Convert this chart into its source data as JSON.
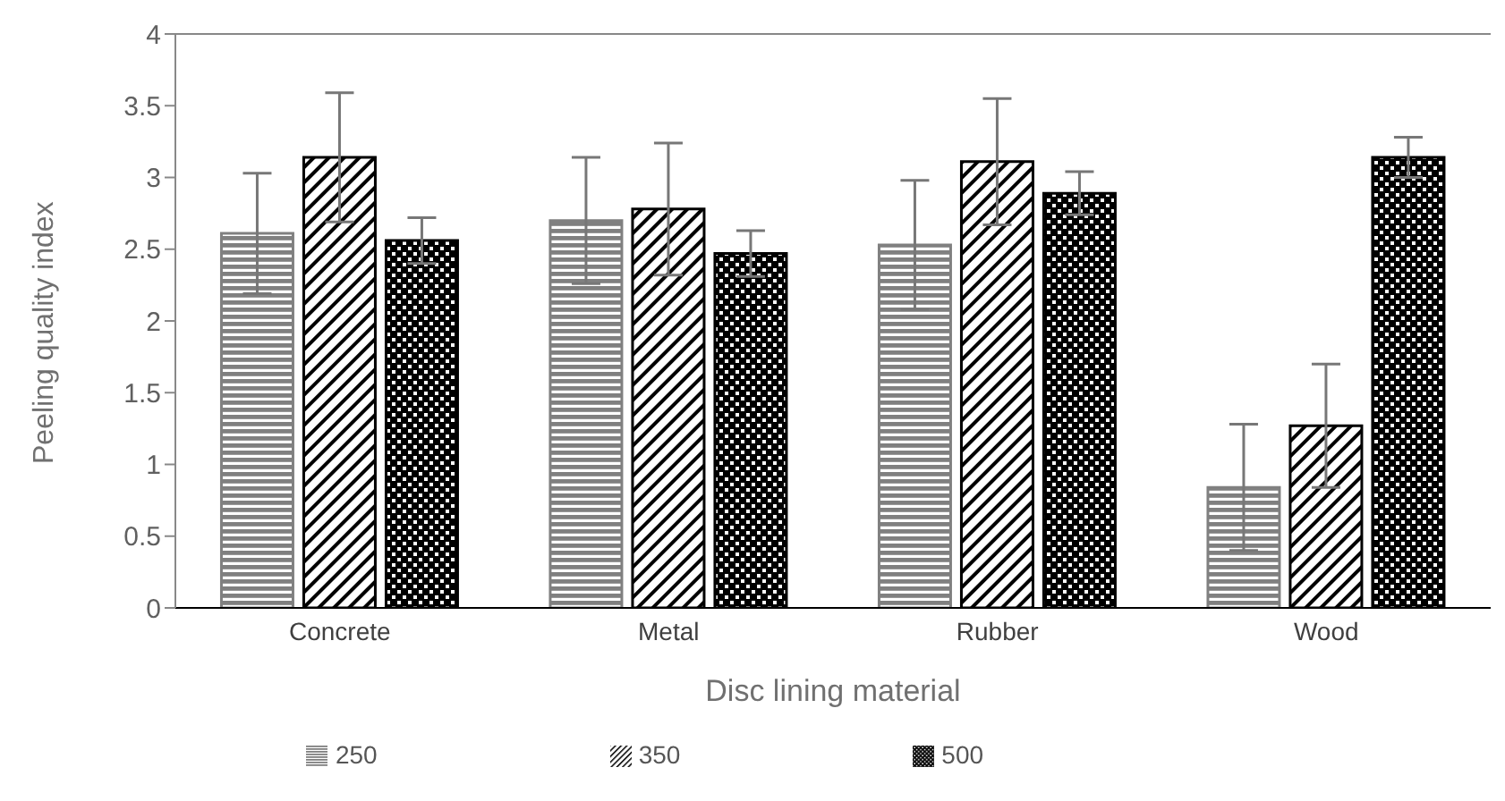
{
  "chart_data": {
    "type": "bar",
    "xlabel": "Disc lining material",
    "ylabel": "Peeling quality index",
    "categories": [
      "Concrete",
      "Metal",
      "Rubber",
      "Wood"
    ],
    "series": [
      {
        "name": "250",
        "color": "#808080",
        "values": [
          2.61,
          2.7,
          2.53,
          0.84
        ],
        "errors": [
          0.42,
          0.44,
          0.45,
          0.44
        ]
      },
      {
        "name": "350",
        "color": "#000000",
        "values": [
          3.14,
          2.78,
          3.11,
          1.27
        ],
        "errors": [
          0.45,
          0.46,
          0.44,
          0.43
        ]
      },
      {
        "name": "500",
        "color": "#000000",
        "values": [
          2.56,
          2.47,
          2.89,
          3.14
        ],
        "errors": [
          0.16,
          0.16,
          0.15,
          0.14
        ]
      }
    ],
    "ylim": [
      0,
      4
    ],
    "yticks": [
      0,
      0.5,
      1,
      1.5,
      2,
      2.5,
      3,
      3.5,
      4
    ],
    "grid": false,
    "legend": "bottom"
  }
}
